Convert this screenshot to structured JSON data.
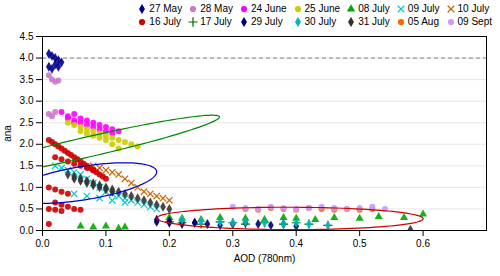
{
  "chart_data": {
    "type": "scatter",
    "xlabel": "AOD (780nm)",
    "ylabel": "ana",
    "xlim": [
      0,
      0.7
    ],
    "ylim": [
      0,
      4.5
    ],
    "xticks": [
      {
        "value": 0,
        "label": "0.0"
      },
      0.1,
      0.2,
      0.3,
      0.4,
      0.5,
      0.6
    ],
    "yticks": [
      {
        "value": 0,
        "label": "0.0"
      },
      0.5,
      {
        "value": 1,
        "label": "1.0"
      },
      1.5,
      {
        "value": 2,
        "label": "2.0"
      },
      2.5,
      {
        "value": 3,
        "label": "3.0"
      },
      3.5,
      {
        "value": 4,
        "label": "4.0"
      },
      4.5
    ],
    "grid": true,
    "legend": "top",
    "series": [
      {
        "name": "27 May",
        "color": "#00008B",
        "marker": "diamond",
        "x": [
          0.01,
          0.015,
          0.02,
          0.025,
          0.03,
          0.02,
          0.01,
          0.025,
          0.015
        ],
        "y": [
          4.1,
          4.05,
          4.0,
          3.95,
          3.9,
          3.85,
          3.8,
          3.8,
          3.75
        ]
      },
      {
        "name": "28 May",
        "color": "#CC77CC",
        "marker": "circle",
        "x": [
          0.01,
          0.015,
          0.02,
          0.025,
          0.02,
          0.015,
          0.01
        ],
        "y": [
          3.6,
          3.5,
          3.45,
          3.48,
          2.75,
          2.65,
          2.7
        ]
      },
      {
        "name": "24 June",
        "color": "#FF00FF",
        "marker": "circle",
        "x": [
          0.03,
          0.04,
          0.05,
          0.06,
          0.07,
          0.08,
          0.09,
          0.1,
          0.11,
          0.05,
          0.06,
          0.07,
          0.08,
          0.09,
          0.1,
          0.11,
          0.12,
          0.04,
          0.05
        ],
        "y": [
          2.75,
          2.65,
          2.55,
          2.5,
          2.45,
          2.4,
          2.35,
          2.3,
          2.25,
          2.7,
          2.6,
          2.55,
          2.5,
          2.45,
          2.4,
          2.35,
          2.3,
          2.6,
          2.5
        ]
      },
      {
        "name": "25 June",
        "color": "#CCCC00",
        "marker": "circle",
        "x": [
          0.04,
          0.05,
          0.06,
          0.07,
          0.08,
          0.09,
          0.1,
          0.11,
          0.12,
          0.13,
          0.14,
          0.15,
          0.06,
          0.07,
          0.08,
          0.09,
          0.1,
          0.11,
          0.12
        ],
        "y": [
          2.5,
          2.45,
          2.4,
          2.35,
          2.3,
          2.25,
          2.2,
          2.15,
          2.1,
          2.05,
          2.0,
          1.95,
          2.3,
          2.25,
          2.2,
          2.15,
          2.1,
          2.0,
          1.9
        ]
      },
      {
        "name": "08 July",
        "color": "#00AA00",
        "marker": "triangle",
        "x": [
          0.06,
          0.08,
          0.1,
          0.12,
          0.13,
          0.2,
          0.22,
          0.25,
          0.28,
          0.32,
          0.35,
          0.38,
          0.4,
          0.43,
          0.46,
          0.5,
          0.53,
          0.57,
          0.6
        ],
        "y": [
          0.1,
          0.08,
          0.1,
          0.05,
          0.08,
          0.3,
          0.28,
          0.25,
          0.3,
          0.28,
          0.25,
          0.3,
          0.28,
          0.25,
          0.3,
          0.28,
          0.32,
          0.3,
          0.38
        ]
      },
      {
        "name": "09 July",
        "color": "#00CCCC",
        "marker": "x",
        "x": [
          0.02,
          0.03,
          0.04,
          0.05,
          0.06,
          0.07,
          0.08,
          0.09,
          0.1,
          0.11,
          0.12,
          0.13,
          0.14,
          0.15,
          0.16,
          0.17,
          0.18,
          0.05,
          0.07,
          0.09,
          0.11,
          0.13
        ],
        "y": [
          1.5,
          1.45,
          1.4,
          1.35,
          1.3,
          1.2,
          1.1,
          1.0,
          0.9,
          0.85,
          0.8,
          0.75,
          0.7,
          0.65,
          0.6,
          0.55,
          0.5,
          0.85,
          0.8,
          0.75,
          0.7,
          0.65
        ]
      },
      {
        "name": "10 July",
        "color": "#CC6600",
        "marker": "x",
        "x": [
          0.08,
          0.09,
          0.1,
          0.11,
          0.12,
          0.13,
          0.14,
          0.15,
          0.16,
          0.17,
          0.18,
          0.19,
          0.2
        ],
        "y": [
          1.5,
          1.45,
          1.4,
          1.35,
          1.3,
          1.2,
          1.1,
          1.0,
          0.9,
          0.85,
          0.8,
          0.75,
          0.7
        ]
      },
      {
        "name": "16 July",
        "color": "#CC0000",
        "marker": "circle",
        "x": [
          0.01,
          0.015,
          0.02,
          0.025,
          0.03,
          0.035,
          0.04,
          0.045,
          0.05,
          0.055,
          0.06,
          0.065,
          0.07,
          0.075,
          0.08,
          0.085,
          0.09,
          0.095,
          0.1,
          0.02,
          0.03,
          0.04,
          0.05,
          0.06,
          0.07,
          0.08,
          0.02,
          0.03,
          0.04,
          0.05,
          0.06,
          0.01,
          0.02,
          0.03,
          0.01,
          0.02,
          0.03,
          0.04,
          0.01
        ],
        "y": [
          2.1,
          2.05,
          2.0,
          1.95,
          1.9,
          1.85,
          1.8,
          1.75,
          1.7,
          1.65,
          1.6,
          1.55,
          1.5,
          1.45,
          1.4,
          1.35,
          1.3,
          1.25,
          1.2,
          1.7,
          1.65,
          1.6,
          1.55,
          1.5,
          1.45,
          1.4,
          0.65,
          0.6,
          0.55,
          0.5,
          0.48,
          0.5,
          0.48,
          0.45,
          1.0,
          0.95,
          0.9,
          0.85,
          0.15
        ]
      },
      {
        "name": "17 July",
        "color": "#006600",
        "marker": "plus",
        "x": [
          0.2,
          0.22,
          0.25,
          0.28,
          0.3,
          0.32,
          0.35,
          0.38,
          0.4,
          0.42,
          0.45
        ],
        "y": [
          0.2,
          0.18,
          0.15,
          0.2,
          0.18,
          0.15,
          0.18,
          0.15,
          0.18,
          0.15,
          0.12
        ]
      },
      {
        "name": "29 July",
        "color": "#000077",
        "marker": "diamond",
        "x": [
          0.18,
          0.2,
          0.22,
          0.24,
          0.26,
          0.28,
          0.3,
          0.32,
          0.34,
          0.36,
          0.38,
          0.4,
          0.18,
          0.2,
          0.22,
          0.24
        ],
        "y": [
          0.2,
          0.18,
          0.15,
          0.18,
          0.15,
          0.12,
          0.15,
          0.18,
          0.15,
          0.12,
          0.15,
          0.1,
          0.25,
          0.22,
          0.2,
          0.18
        ]
      },
      {
        "name": "30 July",
        "color": "#00BBBB",
        "marker": "diamond",
        "x": [
          0.22,
          0.25,
          0.28,
          0.3,
          0.32,
          0.35,
          0.38,
          0.4,
          0.42,
          0.45
        ],
        "y": [
          0.25,
          0.22,
          0.2,
          0.18,
          0.2,
          0.18,
          0.15,
          0.18,
          0.15,
          0.12
        ]
      },
      {
        "name": "31 July",
        "color": "#333333",
        "marker": "diamond",
        "x": [
          0.04,
          0.05,
          0.06,
          0.07,
          0.08,
          0.09,
          0.1,
          0.11,
          0.12,
          0.13,
          0.14,
          0.15,
          0.16,
          0.17,
          0.18,
          0.19,
          0.2,
          0.05,
          0.06,
          0.07,
          0.08,
          0.09,
          0.1,
          0.11,
          0.58
        ],
        "y": [
          1.3,
          1.25,
          1.2,
          1.15,
          1.1,
          1.05,
          1.0,
          0.95,
          0.9,
          0.85,
          0.8,
          0.75,
          0.7,
          0.65,
          0.6,
          0.55,
          0.5,
          1.2,
          1.15,
          1.1,
          1.05,
          1.0,
          0.95,
          0.9,
          0.02
        ]
      },
      {
        "name": "05 Aug",
        "color": "#FF6600",
        "marker": "circle",
        "x": [
          0.32,
          0.34,
          0.36,
          0.38,
          0.4,
          0.42,
          0.44,
          0.46,
          0.48,
          0.5,
          0.52
        ],
        "y": [
          0.5,
          0.48,
          0.52,
          0.5,
          0.48,
          0.52,
          0.5,
          0.48,
          0.5,
          0.48,
          0.5
        ]
      },
      {
        "name": "09 Sept",
        "color": "#CC99FF",
        "marker": "circle",
        "x": [
          0.3,
          0.32,
          0.34,
          0.36,
          0.38,
          0.4,
          0.42,
          0.44,
          0.46,
          0.48,
          0.5,
          0.52,
          0.54
        ],
        "y": [
          0.55,
          0.52,
          0.5,
          0.55,
          0.52,
          0.5,
          0.52,
          0.55,
          0.52,
          0.5,
          0.52,
          0.55,
          0.5
        ]
      }
    ],
    "reference_lines": [
      {
        "y": 4.0,
        "color": "gray",
        "line_style": "dashed"
      }
    ],
    "ellipses": [
      {
        "x": 0.075,
        "y": 1.95,
        "width": 0.13,
        "height": 1.5,
        "angle": -15,
        "color": "#008800"
      },
      {
        "x": 0.065,
        "y": 1.1,
        "width": 0.19,
        "height": 0.95,
        "angle": -8,
        "color": "#0000CC"
      },
      {
        "x": 0.39,
        "y": 0.28,
        "width": 0.42,
        "height": 0.52,
        "angle": 3,
        "color": "#CC0000"
      }
    ]
  }
}
